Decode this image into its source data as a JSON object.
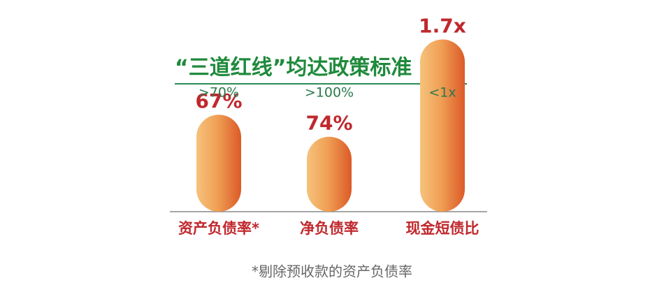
{
  "chart_data": {
    "type": "bar",
    "title": "“三道红线”均达政策标准",
    "categories": [
      "资产负债率*",
      "净负债率",
      "现金短债比"
    ],
    "values": [
      67,
      74,
      1.7
    ],
    "value_labels": [
      "67%",
      "74%",
      "1.7x"
    ],
    "thresholds": [
      {
        "value": 70,
        "label": ">70%"
      },
      {
        "value": 100,
        "label": ">100%"
      },
      {
        "value": 1,
        "label": "<1x"
      }
    ],
    "footnote": "*剔除预收款的资产负债率"
  }
}
